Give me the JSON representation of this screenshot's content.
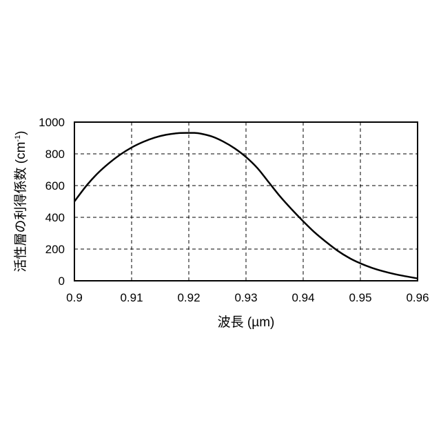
{
  "chart_data": {
    "type": "line",
    "xlabel": "波長 (µm)",
    "ylabel": "活性層の利得係数 (cm",
    "ylabel_sup": "-1",
    "ylabel_end": ")",
    "xlim": [
      0.9,
      0.96
    ],
    "ylim": [
      0,
      1000
    ],
    "x_ticks": [
      "0.9",
      "0.91",
      "0.92",
      "0.93",
      "0.94",
      "0.95",
      "0.96"
    ],
    "y_ticks": [
      "0",
      "200",
      "400",
      "600",
      "800",
      "1000"
    ],
    "grid": true,
    "grid_style": "dashed",
    "line_color": "#000000",
    "series": [
      {
        "x": [
          0.9,
          0.902,
          0.904,
          0.906,
          0.908,
          0.91,
          0.912,
          0.914,
          0.916,
          0.918,
          0.92,
          0.921,
          0.922,
          0.924,
          0.926,
          0.928,
          0.93,
          0.932,
          0.934,
          0.936,
          0.938,
          0.94,
          0.942,
          0.944,
          0.946,
          0.948,
          0.95,
          0.952,
          0.954,
          0.956,
          0.958,
          0.96
        ],
        "y": [
          500,
          595,
          675,
          740,
          795,
          840,
          875,
          902,
          920,
          930,
          932,
          932,
          928,
          910,
          878,
          835,
          780,
          710,
          620,
          530,
          450,
          375,
          305,
          245,
          190,
          145,
          110,
          82,
          60,
          42,
          28,
          15
        ]
      }
    ]
  }
}
